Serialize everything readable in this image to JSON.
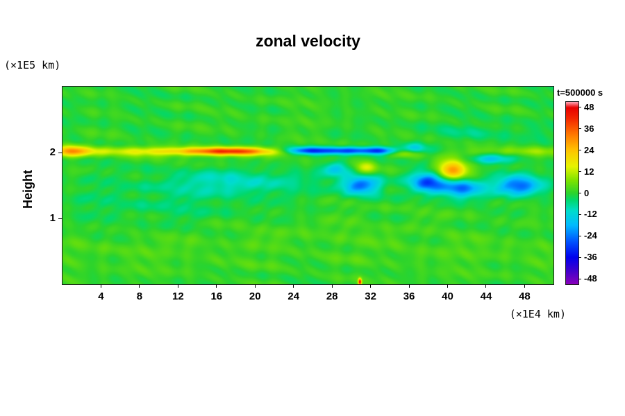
{
  "chart_data": {
    "type": "heatmap",
    "title": "zonal velocity",
    "ylabel": "Height",
    "y_unit_label": "(×1E5 km)",
    "x_unit_label": "(×1E4 km)",
    "x_range": [
      0,
      51
    ],
    "y_range": [
      0,
      3
    ],
    "x_ticks": [
      4,
      8,
      12,
      16,
      20,
      24,
      28,
      32,
      36,
      40,
      44,
      48
    ],
    "y_ticks": [
      1,
      2
    ],
    "grid": false,
    "background_value": 0,
    "colorbar": {
      "label": "t=500000 s",
      "position": "right",
      "ticks": [
        48,
        36,
        24,
        12,
        0,
        -12,
        -24,
        -36,
        -48
      ],
      "range": [
        -51,
        51
      ]
    },
    "palette_stops": [
      {
        "v": -51,
        "color": "#8800bb"
      },
      {
        "v": -44,
        "color": "#4400cc"
      },
      {
        "v": -36,
        "color": "#0000ee"
      },
      {
        "v": -27,
        "color": "#0055ff"
      },
      {
        "v": -18,
        "color": "#00bbff"
      },
      {
        "v": -10,
        "color": "#00ddcc"
      },
      {
        "v": -4,
        "color": "#00d86e"
      },
      {
        "v": 0,
        "color": "#2cd42c"
      },
      {
        "v": 7,
        "color": "#7ce300"
      },
      {
        "v": 15,
        "color": "#e8f400"
      },
      {
        "v": 24,
        "color": "#ffc400"
      },
      {
        "v": 33,
        "color": "#ff7700"
      },
      {
        "v": 42,
        "color": "#f32500"
      },
      {
        "v": 48,
        "color": "#e80000"
      },
      {
        "v": 51,
        "color": "#ff9fb0"
      }
    ],
    "features": [
      {
        "x": 1.0,
        "y": 2.02,
        "sx": 1.4,
        "sy": 0.06,
        "amp": 20
      },
      {
        "x": 11.0,
        "y": 2.02,
        "sx": 9.0,
        "sy": 0.05,
        "amp": 16
      },
      {
        "x": 17.5,
        "y": 2.02,
        "sx": 3.2,
        "sy": 0.04,
        "amp": 30
      },
      {
        "x": 29.0,
        "y": 2.03,
        "sx": 4.2,
        "sy": 0.04,
        "amp": -32
      },
      {
        "x": 25.3,
        "y": 2.03,
        "sx": 1.1,
        "sy": 0.04,
        "amp": -12
      },
      {
        "x": 33.0,
        "y": 2.03,
        "sx": 1.0,
        "sy": 0.04,
        "amp": -12
      },
      {
        "x": 35.5,
        "y": 2.0,
        "sx": 1.0,
        "sy": 0.05,
        "amp": 14
      },
      {
        "x": 36.6,
        "y": 2.08,
        "sx": 0.9,
        "sy": 0.05,
        "amp": -12
      },
      {
        "x": 40.5,
        "y": 1.74,
        "sx": 1.2,
        "sy": 0.1,
        "amp": 30
      },
      {
        "x": 38.0,
        "y": 1.55,
        "sx": 1.3,
        "sy": 0.11,
        "amp": -28
      },
      {
        "x": 41.5,
        "y": 1.45,
        "sx": 1.6,
        "sy": 0.1,
        "amp": -24
      },
      {
        "x": 47.5,
        "y": 1.5,
        "sx": 1.7,
        "sy": 0.1,
        "amp": -26
      },
      {
        "x": 18.0,
        "y": 1.55,
        "sx": 5.5,
        "sy": 0.13,
        "amp": -10
      },
      {
        "x": 31.0,
        "y": 1.5,
        "sx": 1.4,
        "sy": 0.1,
        "amp": -26
      },
      {
        "x": 28.5,
        "y": 1.75,
        "sx": 1.0,
        "sy": 0.08,
        "amp": -14
      },
      {
        "x": 31.5,
        "y": 1.78,
        "sx": 0.8,
        "sy": 0.07,
        "amp": 13
      },
      {
        "x": 44.5,
        "y": 1.9,
        "sx": 1.5,
        "sy": 0.05,
        "amp": -14
      },
      {
        "x": 48.0,
        "y": 2.02,
        "sx": 4.0,
        "sy": 0.05,
        "amp": 8
      },
      {
        "x": 25.0,
        "y": 0.55,
        "sx": 30.0,
        "sy": 0.3,
        "amp": 2
      },
      {
        "x": 44.0,
        "y": 2.3,
        "sx": 5.0,
        "sy": 0.08,
        "amp": -4
      },
      {
        "x": 10.0,
        "y": 1.2,
        "sx": 8.0,
        "sy": 0.2,
        "amp": -3
      },
      {
        "x": 30.9,
        "y": 0.03,
        "sx": 0.12,
        "sy": 0.035,
        "amp": 45
      }
    ],
    "texture": {
      "amp_wavy": 2.2,
      "amp_streak": 1.2
    }
  }
}
